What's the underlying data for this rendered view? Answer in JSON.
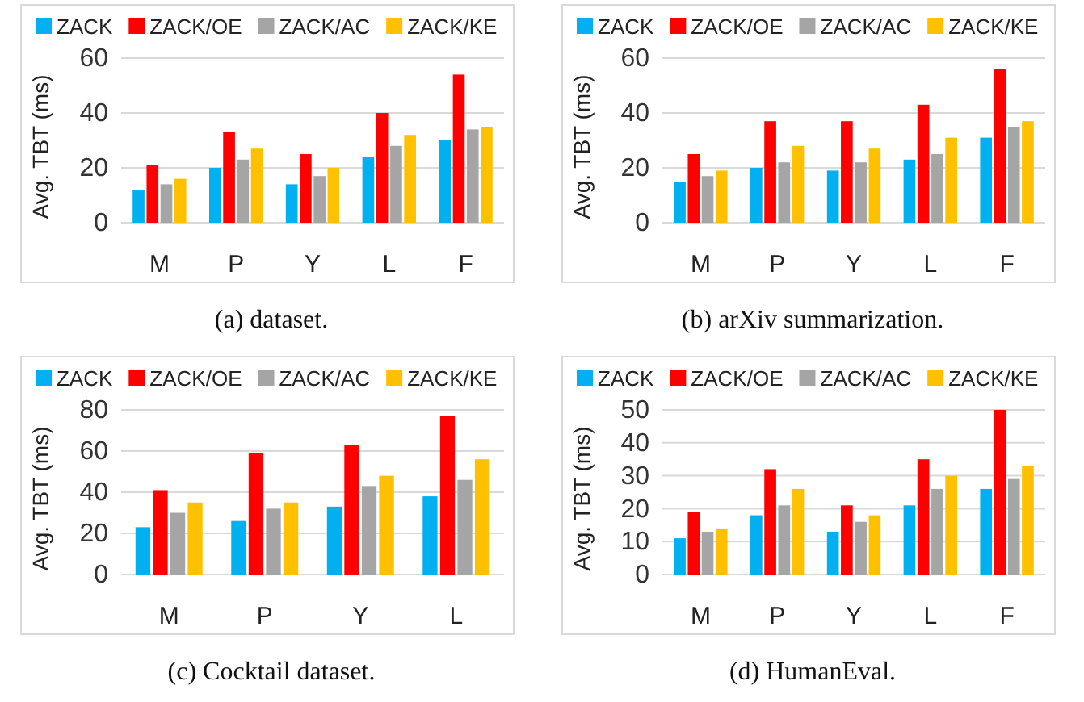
{
  "chart_data": [
    {
      "type": "bar",
      "title": "(a)  dataset.",
      "ylabel": "Avg. TBT (ms)",
      "categories": [
        "M",
        "P",
        "Y",
        "L",
        "F"
      ],
      "ylim": [
        0,
        60
      ],
      "yticks": [
        0,
        20,
        40,
        60
      ],
      "grid": "y",
      "legend": "top",
      "series": [
        {
          "name": "ZACK",
          "color": "#00b0f0",
          "values": [
            12,
            20,
            14,
            24,
            30
          ]
        },
        {
          "name": "ZACK/OE",
          "color": "#ff0000",
          "values": [
            21,
            33,
            25,
            40,
            54
          ]
        },
        {
          "name": "ZACK/AC",
          "color": "#a5a5a5",
          "values": [
            14,
            23,
            17,
            28,
            34
          ]
        },
        {
          "name": "ZACK/KE",
          "color": "#ffc000",
          "values": [
            16,
            27,
            20,
            32,
            35
          ]
        }
      ]
    },
    {
      "type": "bar",
      "title": "(b)  arXiv summarization.",
      "ylabel": "Avg. TBT (ms)",
      "categories": [
        "M",
        "P",
        "Y",
        "L",
        "F"
      ],
      "ylim": [
        0,
        60
      ],
      "yticks": [
        0,
        20,
        40,
        60
      ],
      "grid": "y",
      "legend": "top",
      "series": [
        {
          "name": "ZACK",
          "color": "#00b0f0",
          "values": [
            15,
            20,
            19,
            23,
            31
          ]
        },
        {
          "name": "ZACK/OE",
          "color": "#ff0000",
          "values": [
            25,
            37,
            37,
            43,
            56
          ]
        },
        {
          "name": "ZACK/AC",
          "color": "#a5a5a5",
          "values": [
            17,
            22,
            22,
            25,
            35
          ]
        },
        {
          "name": "ZACK/KE",
          "color": "#ffc000",
          "values": [
            19,
            28,
            27,
            31,
            37
          ]
        }
      ]
    },
    {
      "type": "bar",
      "title": "(c)  Cocktail dataset.",
      "ylabel": "Avg. TBT (ms)",
      "categories": [
        "M",
        "P",
        "Y",
        "L"
      ],
      "ylim": [
        0,
        80
      ],
      "yticks": [
        0,
        20,
        40,
        60,
        80
      ],
      "grid": "y",
      "legend": "top",
      "series": [
        {
          "name": "ZACK",
          "color": "#00b0f0",
          "values": [
            23,
            26,
            33,
            38
          ]
        },
        {
          "name": "ZACK/OE",
          "color": "#ff0000",
          "values": [
            41,
            59,
            63,
            77
          ]
        },
        {
          "name": "ZACK/AC",
          "color": "#a5a5a5",
          "values": [
            30,
            32,
            43,
            46
          ]
        },
        {
          "name": "ZACK/KE",
          "color": "#ffc000",
          "values": [
            35,
            35,
            48,
            56
          ]
        }
      ]
    },
    {
      "type": "bar",
      "title": "(d)  HumanEval.",
      "ylabel": "Avg. TBT (ms)",
      "categories": [
        "M",
        "P",
        "Y",
        "L",
        "F"
      ],
      "ylim": [
        0,
        50
      ],
      "yticks": [
        0,
        10,
        20,
        30,
        40,
        50
      ],
      "grid": "y",
      "legend": "top",
      "series": [
        {
          "name": "ZACK",
          "color": "#00b0f0",
          "values": [
            11,
            18,
            13,
            21,
            26
          ]
        },
        {
          "name": "ZACK/OE",
          "color": "#ff0000",
          "values": [
            19,
            32,
            21,
            35,
            50
          ]
        },
        {
          "name": "ZACK/AC",
          "color": "#a5a5a5",
          "values": [
            13,
            21,
            16,
            26,
            29
          ]
        },
        {
          "name": "ZACK/KE",
          "color": "#ffc000",
          "values": [
            14,
            26,
            18,
            30,
            33
          ]
        }
      ]
    }
  ]
}
